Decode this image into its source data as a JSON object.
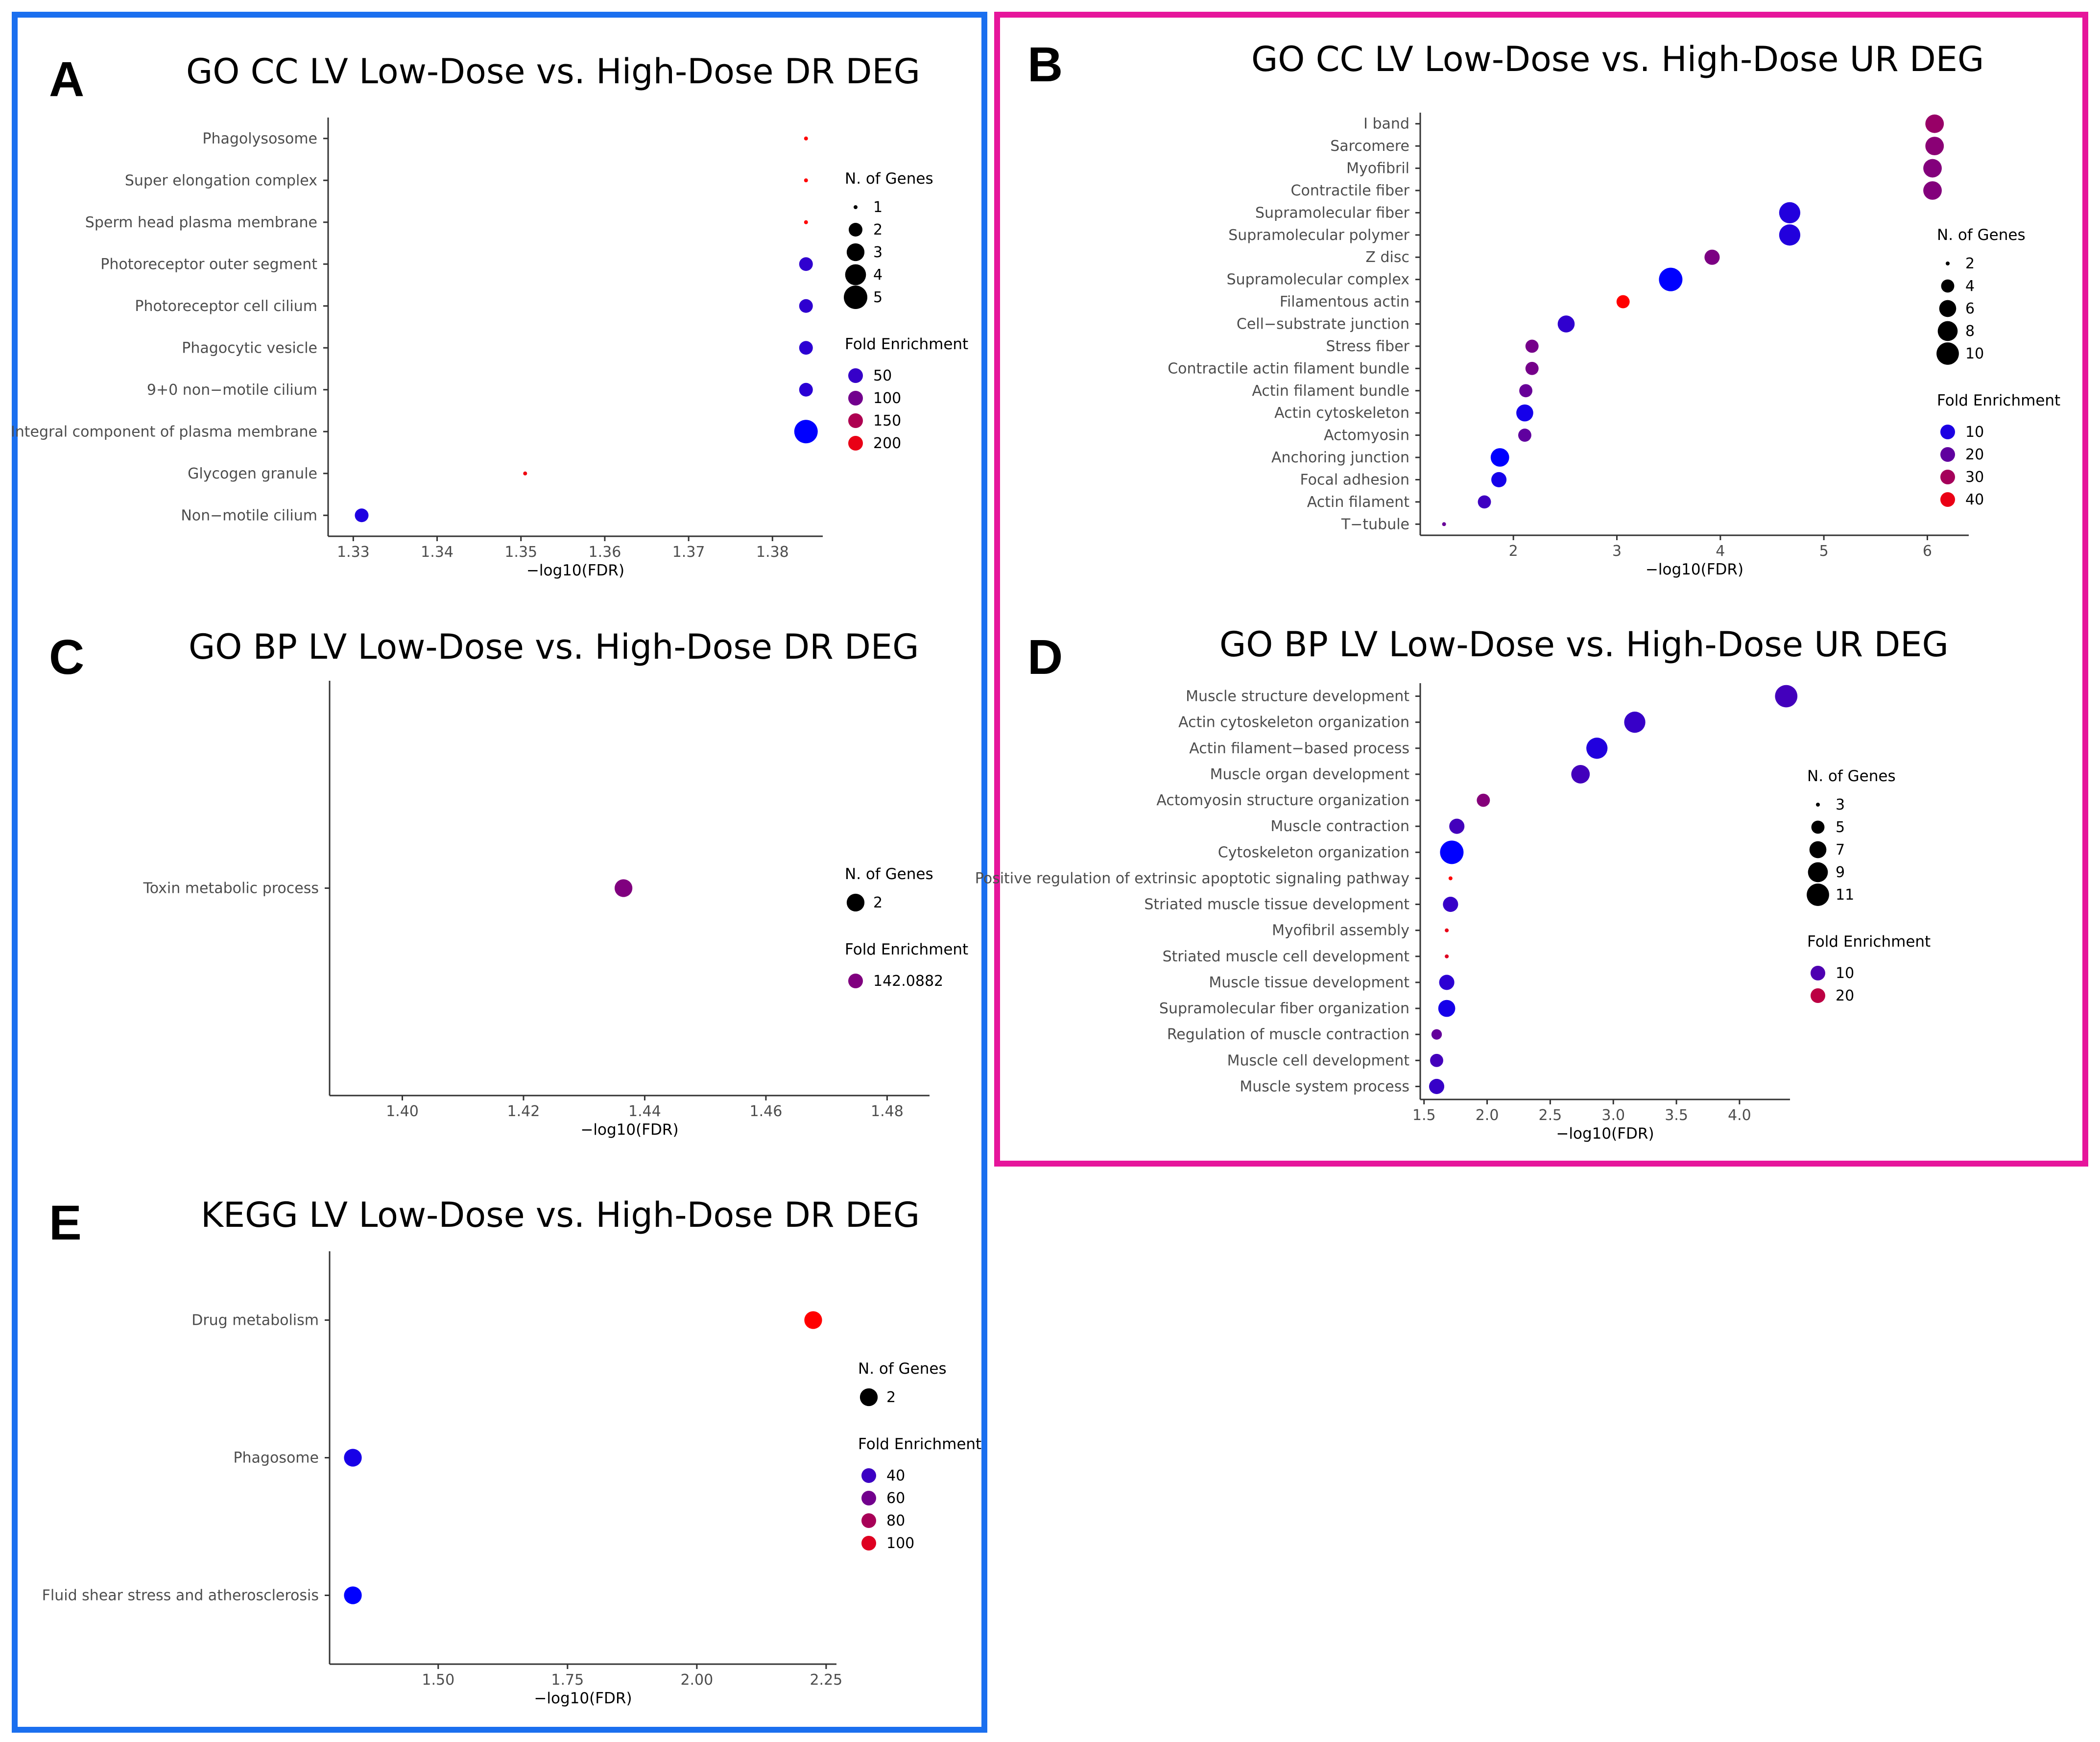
{
  "colors": {
    "blue_frame": "#1a6fef",
    "pink_frame": "#e6159b",
    "scale_low": "#0000ff",
    "scale_high": "#ff0000"
  },
  "panels": [
    {
      "letter": "A",
      "title": "GO CC LV Low-Dose vs. High-Dose DR DEG",
      "chart_data": {
        "type": "scatter",
        "xlabel": "−log10(FDR)",
        "xlim": [
          1.327,
          1.386
        ],
        "xticks": [
          1.33,
          1.34,
          1.35,
          1.36,
          1.37,
          1.38
        ],
        "xtick_labels": [
          "1.33",
          "1.34",
          "1.35",
          "1.36",
          "1.37",
          "1.38"
        ],
        "categories": [
          "Phagolysosome",
          "Super elongation complex",
          "Sperm head plasma membrane",
          "Photoreceptor outer segment",
          "Photoreceptor cell cilium",
          "Phagocytic vesicle",
          "9+0 non−motile cilium",
          "Integral component of plasma membrane",
          "Glycogen granule",
          "Non−motile cilium"
        ],
        "points": [
          {
            "x": 1.384,
            "genes": 1,
            "fold": 218
          },
          {
            "x": 1.384,
            "genes": 1,
            "fold": 218
          },
          {
            "x": 1.384,
            "genes": 1,
            "fold": 218
          },
          {
            "x": 1.384,
            "genes": 2,
            "fold": 45
          },
          {
            "x": 1.384,
            "genes": 2,
            "fold": 44
          },
          {
            "x": 1.384,
            "genes": 2,
            "fold": 42
          },
          {
            "x": 1.384,
            "genes": 2,
            "fold": 40
          },
          {
            "x": 1.384,
            "genes": 5,
            "fold": 5
          },
          {
            "x": 1.3505,
            "genes": 1,
            "fold": 205
          },
          {
            "x": 1.331,
            "genes": 2,
            "fold": 30
          }
        ],
        "fold_range": [
          5,
          218
        ],
        "size_legend": {
          "title": "N. of Genes",
          "values": [
            1,
            2,
            3,
            4,
            5
          ],
          "labels": [
            "1",
            "2",
            "3",
            "4",
            "5"
          ],
          "range": [
            1,
            5
          ]
        },
        "color_legend": {
          "title": "Fold Enrichment",
          "values": [
            50,
            100,
            150,
            200
          ],
          "labels": [
            "50",
            "100",
            "150",
            "200"
          ]
        }
      }
    },
    {
      "letter": "B",
      "title": "GO CC LV Low-Dose vs. High-Dose UR DEG",
      "chart_data": {
        "type": "scatter",
        "xlabel": "−log10(FDR)",
        "xlim": [
          1.1,
          6.4
        ],
        "xticks": [
          2,
          3,
          4,
          5,
          6
        ],
        "xtick_labels": [
          "2",
          "3",
          "4",
          "5",
          "6"
        ],
        "categories": [
          "I band",
          "Sarcomere",
          "Myofibril",
          "Contractile fiber",
          "Supramolecular fiber",
          "Supramolecular polymer",
          "Z disc",
          "Supramolecular complex",
          "Filamentous actin",
          "Cell−substrate junction",
          "Stress fiber",
          "Contractile actin filament bundle",
          "Actin filament bundle",
          "Actin cytoskeleton",
          "Actomyosin",
          "Anchoring junction",
          "Focal adhesion",
          "Actin filament",
          "T−tubule"
        ],
        "points": [
          {
            "x": 6.07,
            "genes": 7,
            "fold": 28
          },
          {
            "x": 6.07,
            "genes": 7,
            "fold": 26
          },
          {
            "x": 6.05,
            "genes": 7,
            "fold": 25
          },
          {
            "x": 6.05,
            "genes": 7,
            "fold": 25
          },
          {
            "x": 4.67,
            "genes": 9,
            "fold": 11
          },
          {
            "x": 4.67,
            "genes": 9,
            "fold": 11
          },
          {
            "x": 3.92,
            "genes": 5,
            "fold": 24
          },
          {
            "x": 3.52,
            "genes": 11,
            "fold": 6
          },
          {
            "x": 3.06,
            "genes": 4,
            "fold": 43
          },
          {
            "x": 2.51,
            "genes": 6,
            "fold": 13
          },
          {
            "x": 2.18,
            "genes": 4,
            "fold": 23
          },
          {
            "x": 2.18,
            "genes": 4,
            "fold": 23
          },
          {
            "x": 2.12,
            "genes": 4,
            "fold": 21
          },
          {
            "x": 2.11,
            "genes": 6,
            "fold": 9
          },
          {
            "x": 2.11,
            "genes": 4,
            "fold": 20
          },
          {
            "x": 1.87,
            "genes": 7,
            "fold": 6
          },
          {
            "x": 1.86,
            "genes": 5,
            "fold": 9
          },
          {
            "x": 1.72,
            "genes": 4,
            "fold": 15
          },
          {
            "x": 1.33,
            "genes": 2,
            "fold": 21
          }
        ],
        "fold_range": [
          6,
          43
        ],
        "size_legend": {
          "title": "N. of Genes",
          "values": [
            2,
            4,
            6,
            8,
            10
          ],
          "labels": [
            "2",
            "4",
            "6",
            "8",
            "10"
          ],
          "range": [
            2,
            11
          ]
        },
        "color_legend": {
          "title": "Fold Enrichment",
          "values": [
            10,
            20,
            30,
            40
          ],
          "labels": [
            "10",
            "20",
            "30",
            "40"
          ]
        }
      }
    },
    {
      "letter": "C",
      "title": "GO BP LV Low-Dose vs. High-Dose DR DEG",
      "chart_data": {
        "type": "scatter",
        "xlabel": "−log10(FDR)",
        "xlim": [
          1.388,
          1.487
        ],
        "xticks": [
          1.4,
          1.42,
          1.44,
          1.46,
          1.48
        ],
        "xtick_labels": [
          "1.40",
          "1.42",
          "1.44",
          "1.46",
          "1.48"
        ],
        "categories": [
          "Toxin metabolic process"
        ],
        "points": [
          {
            "x": 1.4365,
            "genes": 2,
            "fold": 142.0882
          }
        ],
        "fold_range": [
          0,
          284
        ],
        "size_legend": {
          "title": "N. of Genes",
          "values": [
            2
          ],
          "labels": [
            "2"
          ],
          "range": [
            1,
            3
          ]
        },
        "color_legend": {
          "title": "Fold Enrichment",
          "values": [
            142.0882
          ],
          "labels": [
            "142.0882"
          ]
        }
      }
    },
    {
      "letter": "D",
      "title": "GO BP LV Low-Dose vs. High-Dose UR DEG",
      "chart_data": {
        "type": "scatter",
        "xlabel": "−log10(FDR)",
        "xlim": [
          1.47,
          4.4
        ],
        "xticks": [
          1.5,
          2.0,
          2.5,
          3.0,
          3.5,
          4.0
        ],
        "xtick_labels": [
          "1.5",
          "2.0",
          "2.5",
          "3.0",
          "3.5",
          "4.0"
        ],
        "categories": [
          "Muscle structure development",
          "Actin cytoskeleton organization",
          "Actin filament−based process",
          "Muscle organ development",
          "Actomyosin structure organization",
          "Muscle contraction",
          "Cytoskeleton organization",
          "Positive regulation of extrinsic apoptotic signaling pathway",
          "Striated muscle tissue development",
          "Myofibril assembly",
          "Striated muscle cell development",
          "Muscle tissue development",
          "Supramolecular fiber organization",
          "Regulation of muscle contraction",
          "Muscle cell development",
          "Muscle system process"
        ],
        "points": [
          {
            "x": 4.37,
            "genes": 11,
            "fold": 9
          },
          {
            "x": 3.17,
            "genes": 10,
            "fold": 8
          },
          {
            "x": 2.87,
            "genes": 10,
            "fold": 6
          },
          {
            "x": 2.74,
            "genes": 8,
            "fold": 9
          },
          {
            "x": 1.97,
            "genes": 5,
            "fold": 15
          },
          {
            "x": 1.76,
            "genes": 6,
            "fold": 9
          },
          {
            "x": 1.72,
            "genes": 12,
            "fold": 3
          },
          {
            "x": 1.71,
            "genes": 3,
            "fold": 26
          },
          {
            "x": 1.71,
            "genes": 6,
            "fold": 8
          },
          {
            "x": 1.68,
            "genes": 3,
            "fold": 24
          },
          {
            "x": 1.68,
            "genes": 3,
            "fold": 23
          },
          {
            "x": 1.68,
            "genes": 6,
            "fold": 7
          },
          {
            "x": 1.68,
            "genes": 7,
            "fold": 5
          },
          {
            "x": 1.6,
            "genes": 4,
            "fold": 12
          },
          {
            "x": 1.6,
            "genes": 5,
            "fold": 9
          },
          {
            "x": 1.6,
            "genes": 6,
            "fold": 8
          }
        ],
        "fold_range": [
          3,
          26
        ],
        "size_legend": {
          "title": "N. of Genes",
          "values": [
            3,
            5,
            7,
            9,
            11
          ],
          "labels": [
            "3",
            "5",
            "7",
            "9",
            "11"
          ],
          "range": [
            3,
            12
          ]
        },
        "color_legend": {
          "title": "Fold Enrichment",
          "values": [
            10,
            20
          ],
          "labels": [
            "10",
            "20"
          ]
        }
      }
    },
    {
      "letter": "E",
      "title": "KEGG LV Low-Dose vs. High-Dose DR DEG",
      "chart_data": {
        "type": "scatter",
        "xlabel": "−log10(FDR)",
        "xlim": [
          1.29,
          2.27
        ],
        "xticks": [
          1.5,
          1.75,
          2.0,
          2.25
        ],
        "xtick_labels": [
          "1.50",
          "1.75",
          "2.00",
          "2.25"
        ],
        "categories": [
          "Drug metabolism",
          "Phagosome",
          "Fluid shear stress and atherosclerosis"
        ],
        "points": [
          {
            "x": 2.225,
            "genes": 2,
            "fold": 112
          },
          {
            "x": 1.335,
            "genes": 2,
            "fold": 27
          },
          {
            "x": 1.335,
            "genes": 2,
            "fold": 18
          }
        ],
        "fold_range": [
          18,
          112
        ],
        "size_legend": {
          "title": "N. of Genes",
          "values": [
            2
          ],
          "labels": [
            "2"
          ],
          "range": [
            1,
            3
          ]
        },
        "color_legend": {
          "title": "Fold Enrichment",
          "values": [
            40,
            60,
            80,
            100
          ],
          "labels": [
            "40",
            "60",
            "80",
            "100"
          ]
        }
      }
    }
  ]
}
